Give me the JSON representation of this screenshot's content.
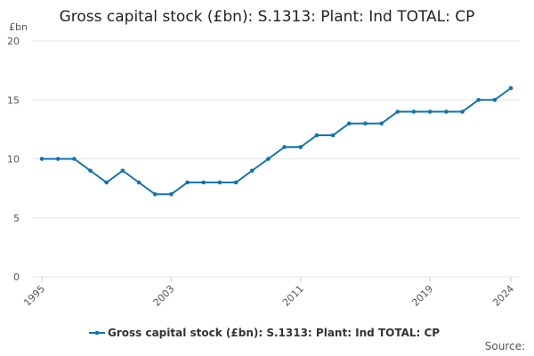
{
  "chart_data": {
    "type": "line",
    "title": "Gross capital stock (£bn): S.1313: Plant: Ind TOTAL: CP",
    "y_label": "£bn",
    "source": "Source:",
    "x": [
      1995,
      1996,
      1997,
      1998,
      1999,
      2000,
      2001,
      2002,
      2003,
      2004,
      2005,
      2006,
      2007,
      2008,
      2009,
      2010,
      2011,
      2012,
      2013,
      2014,
      2015,
      2016,
      2017,
      2018,
      2019,
      2020,
      2021,
      2022,
      2023,
      2024
    ],
    "series": [
      {
        "name": "Gross capital stock (£bn): S.1313: Plant: Ind TOTAL: CP",
        "color": "#0f74b3",
        "values": [
          10,
          10,
          10,
          9,
          8,
          9,
          8,
          7,
          7,
          8,
          8,
          8,
          8,
          9,
          10,
          11,
          11,
          12,
          12,
          13,
          13,
          13,
          14,
          14,
          14,
          14,
          14,
          15,
          15,
          16
        ]
      }
    ],
    "xlim": [
      1995,
      2024
    ],
    "xticks": [
      1995,
      2003,
      2011,
      2019,
      2024
    ],
    "ylim": [
      0,
      20
    ],
    "yticks": [
      0,
      5,
      10,
      15,
      20
    ],
    "grid": true
  }
}
